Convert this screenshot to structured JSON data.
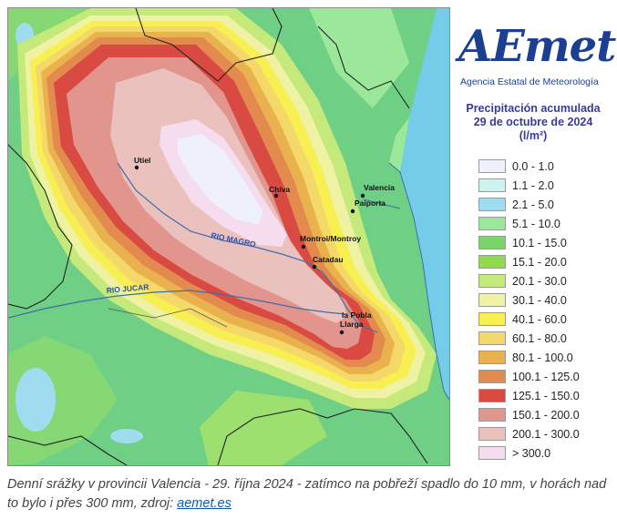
{
  "map": {
    "cities": [
      {
        "name": "Utiel"
      },
      {
        "name": "Chiva"
      },
      {
        "name": "Valencia"
      },
      {
        "name": "Paiporta"
      },
      {
        "name": "Montroi/Montroy"
      },
      {
        "name": "Catadau"
      },
      {
        "name": "la Pobla"
      },
      {
        "name": "Llarga"
      }
    ],
    "rivers": [
      {
        "name": "RIO MAGRO"
      },
      {
        "name": "RIO JUCAR"
      }
    ],
    "colors": {
      "sea": "#75cce8",
      "land_low": "#6fcf85"
    }
  },
  "logo": {
    "word": "AEmet",
    "subtitle": "Agencia Estatal de Meteorología"
  },
  "legend": {
    "title_line1": "Precipitación acumulada",
    "title_line2": "29 de octubre de 2024",
    "unit": "(l/m²)",
    "items": [
      {
        "label": "0.0 - 1.0",
        "color": "#eef1fb"
      },
      {
        "label": "1.1 - 2.0",
        "color": "#cdf2ef"
      },
      {
        "label": "2.1 - 5.0",
        "color": "#9fdcf0"
      },
      {
        "label": "5.1 - 10.0",
        "color": "#9be89b"
      },
      {
        "label": "10.1 - 15.0",
        "color": "#7cd46c"
      },
      {
        "label": "15.1 - 20.0",
        "color": "#8fda4d"
      },
      {
        "label": "20.1 - 30.0",
        "color": "#c5e97a"
      },
      {
        "label": "30.1 - 40.0",
        "color": "#eef2a2"
      },
      {
        "label": "40.1 - 60.0",
        "color": "#f8ef52"
      },
      {
        "label": "60.1 - 80.0",
        "color": "#f5d86a"
      },
      {
        "label": "80.1 - 100.0",
        "color": "#eab24e"
      },
      {
        "label": "100.1 - 125.0",
        "color": "#e38b4e"
      },
      {
        "label": "125.1 - 150.0",
        "color": "#d84a42"
      },
      {
        "label": "150.1 - 200.0",
        "color": "#e2958d"
      },
      {
        "label": "200.1 - 300.0",
        "color": "#ebc1bd"
      },
      {
        "label": "> 300.0",
        "color": "#f5dcef"
      }
    ]
  },
  "caption": {
    "text": "Denní srážky v provincii Valencia - 29. října 2024 - zatímco na pobřeží spadlo do 10 mm, v horách nad to bylo i přes 300 mm, zdroj: ",
    "link": "aemet.es"
  }
}
